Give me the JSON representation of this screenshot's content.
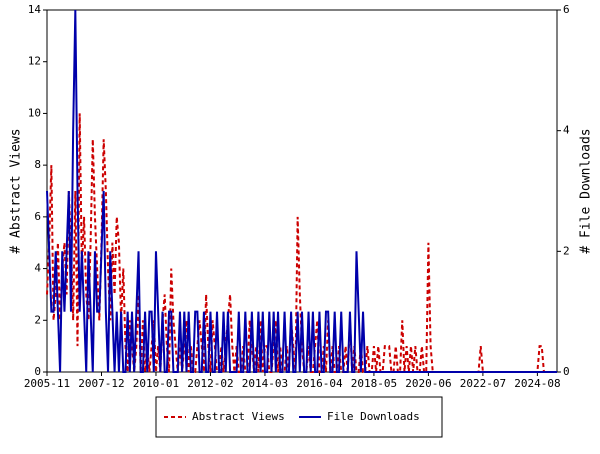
{
  "chart_data": {
    "type": "line",
    "y_label": "# Abstract Views",
    "y2_label": "# File Downloads",
    "x": [
      "2005-11",
      "2005-12",
      "2006-01",
      "2006-02",
      "2006-03",
      "2006-04",
      "2006-05",
      "2006-06",
      "2006-07",
      "2006-08",
      "2006-09",
      "2006-10",
      "2006-11",
      "2006-12",
      "2007-01",
      "2007-02",
      "2007-03",
      "2007-04",
      "2007-05",
      "2007-06",
      "2007-07",
      "2007-08",
      "2007-09",
      "2007-10",
      "2007-11",
      "2007-12",
      "2008-01",
      "2008-02",
      "2008-03",
      "2008-04",
      "2008-05",
      "2008-06",
      "2008-07",
      "2008-08",
      "2008-09",
      "2008-10",
      "2008-11",
      "2008-12",
      "2009-01",
      "2009-02",
      "2009-03",
      "2009-04",
      "2009-05",
      "2009-06",
      "2009-07",
      "2009-08",
      "2009-09",
      "2009-10",
      "2009-11",
      "2009-12",
      "2010-01",
      "2010-02",
      "2010-03",
      "2010-04",
      "2010-05",
      "2010-06",
      "2010-07",
      "2010-08",
      "2010-09",
      "2010-10",
      "2010-11",
      "2010-12",
      "2011-01",
      "2011-02",
      "2011-03",
      "2011-04",
      "2011-05",
      "2011-06",
      "2011-07",
      "2011-08",
      "2011-09",
      "2011-10",
      "2011-11",
      "2011-12",
      "2012-01",
      "2012-02",
      "2012-03",
      "2012-04",
      "2012-05",
      "2012-06",
      "2012-07",
      "2012-08",
      "2012-09",
      "2012-10",
      "2012-11",
      "2012-12",
      "2013-01",
      "2013-02",
      "2013-03",
      "2013-04",
      "2013-05",
      "2013-06",
      "2013-07",
      "2013-08",
      "2013-09",
      "2013-10",
      "2013-11",
      "2013-12",
      "2014-01",
      "2014-02",
      "2014-03",
      "2014-04",
      "2014-05",
      "2014-06",
      "2014-07",
      "2014-08",
      "2014-09",
      "2014-10",
      "2014-11",
      "2014-12",
      "2015-01",
      "2015-02",
      "2015-03",
      "2015-04",
      "2015-05",
      "2015-06",
      "2015-07",
      "2015-08",
      "2015-09",
      "2015-10",
      "2015-11",
      "2015-12",
      "2016-01",
      "2016-02",
      "2016-03",
      "2016-04",
      "2016-05",
      "2016-06",
      "2016-07",
      "2016-08",
      "2016-09",
      "2016-10",
      "2016-11",
      "2016-12",
      "2017-01",
      "2017-02",
      "2017-03",
      "2017-04",
      "2017-05",
      "2017-06",
      "2017-07",
      "2017-08",
      "2017-09",
      "2017-10",
      "2017-11",
      "2017-12",
      "2018-01",
      "2018-02",
      "2018-03",
      "2018-04",
      "2018-05",
      "2018-06",
      "2018-07",
      "2018-08",
      "2018-09",
      "2018-10",
      "2018-11",
      "2018-12",
      "2019-01",
      "2019-02",
      "2019-03",
      "2019-04",
      "2019-05",
      "2019-06",
      "2019-07",
      "2019-08",
      "2019-09",
      "2019-10",
      "2019-11",
      "2019-12",
      "2020-01",
      "2020-02",
      "2020-03",
      "2020-04",
      "2020-05",
      "2020-06",
      "2020-07",
      "2020-08",
      "2020-09",
      "2020-10",
      "2020-11",
      "2020-12",
      "2021-01",
      "2021-02",
      "2021-03",
      "2021-04",
      "2021-05",
      "2021-06",
      "2021-07",
      "2021-08",
      "2021-09",
      "2021-10",
      "2021-11",
      "2021-12",
      "2022-01",
      "2022-02",
      "2022-03",
      "2022-04",
      "2022-05",
      "2022-06",
      "2022-07",
      "2022-08",
      "2022-09",
      "2022-10",
      "2022-11",
      "2022-12",
      "2023-01",
      "2023-02",
      "2023-03",
      "2023-04",
      "2023-05",
      "2023-06",
      "2023-07",
      "2023-08",
      "2023-09",
      "2023-10",
      "2023-11",
      "2023-12",
      "2024-01",
      "2024-02",
      "2024-03",
      "2024-04",
      "2024-05",
      "2024-06",
      "2024-07",
      "2024-08",
      "2024-09",
      "2024-10",
      "2024-11",
      "2024-12",
      "2025-01",
      "2025-02",
      "2025-03",
      "2025-04",
      "2025-05"
    ],
    "series": [
      {
        "name": "Abstract Views",
        "color": "#cc0000",
        "dash": true,
        "values": [
          3,
          5,
          8,
          2,
          3,
          5,
          2,
          4,
          5,
          3,
          7,
          5,
          2,
          7,
          1,
          10,
          4,
          6,
          3,
          2,
          5,
          9,
          6,
          4,
          2,
          5,
          9,
          7,
          4,
          2,
          5,
          3,
          6,
          5,
          2,
          4,
          1,
          0,
          2,
          1,
          0,
          1,
          3,
          0,
          2,
          0,
          1,
          0,
          1,
          2,
          0,
          1,
          0,
          2,
          3,
          1,
          0,
          4,
          2,
          1,
          0,
          1,
          0,
          1,
          2,
          0,
          1,
          0,
          0,
          1,
          2,
          1,
          0,
          3,
          1,
          0,
          2,
          1,
          0,
          0,
          1,
          0,
          1,
          2,
          3,
          1,
          0,
          1,
          0,
          0,
          1,
          0,
          0,
          2,
          1,
          0,
          1,
          0,
          2,
          0,
          1,
          1,
          0,
          0,
          1,
          2,
          0,
          1,
          0,
          0,
          1,
          0,
          2,
          1,
          0,
          6,
          3,
          1,
          0,
          0,
          1,
          0,
          0,
          1,
          2,
          0,
          0,
          1,
          0,
          2,
          0,
          1,
          0,
          0,
          1,
          0,
          0,
          1,
          0,
          2,
          0,
          1,
          0,
          0,
          1,
          0,
          0,
          1,
          0,
          0,
          1,
          0,
          1,
          0,
          0,
          1,
          1,
          1,
          0,
          0,
          1,
          0,
          0,
          2,
          0,
          1,
          0,
          1,
          0,
          1,
          0,
          0,
          1,
          0,
          0,
          5,
          1,
          0,
          0,
          0,
          0,
          0,
          0,
          0,
          0,
          0,
          0,
          0,
          0,
          0,
          0,
          0,
          0,
          0,
          0,
          0,
          0,
          0,
          0,
          1,
          0,
          0,
          0,
          0,
          0,
          0,
          0,
          0,
          0,
          0,
          0,
          0,
          0,
          0,
          0,
          0,
          0,
          0,
          0,
          0,
          0,
          0,
          0,
          0,
          0,
          0,
          1,
          1,
          0,
          0,
          0,
          0,
          0,
          0,
          0
        ]
      },
      {
        "name": "File Downloads",
        "color": "#0000aa",
        "axis": "y2",
        "values": [
          3,
          2,
          1,
          1,
          2,
          1,
          0,
          2,
          1,
          2,
          3,
          1,
          4,
          6,
          3,
          1,
          2,
          1,
          0,
          2,
          1,
          0,
          2,
          1,
          1,
          2,
          3,
          1,
          0,
          2,
          1,
          0,
          1,
          0,
          1,
          0,
          0,
          1,
          0,
          1,
          0,
          1,
          2,
          0,
          0,
          1,
          0,
          1,
          1,
          0,
          2,
          1,
          0,
          1,
          0,
          0,
          1,
          1,
          0,
          0,
          0,
          1,
          0,
          1,
          0,
          1,
          0,
          0,
          1,
          1,
          0,
          0,
          1,
          0,
          0,
          1,
          0,
          0,
          1,
          0,
          0,
          1,
          0,
          1,
          0,
          0,
          0,
          0,
          1,
          0,
          0,
          1,
          0,
          0,
          1,
          0,
          0,
          1,
          0,
          1,
          0,
          0,
          1,
          0,
          1,
          0,
          1,
          0,
          0,
          1,
          0,
          0,
          1,
          0,
          0,
          1,
          0,
          1,
          0,
          0,
          1,
          0,
          1,
          0,
          0,
          1,
          0,
          0,
          1,
          1,
          0,
          0,
          1,
          0,
          0,
          1,
          0,
          0,
          0,
          1,
          0,
          0,
          2,
          1,
          0,
          1,
          0,
          0,
          0,
          0,
          0,
          0,
          0,
          0,
          0,
          0,
          0,
          0,
          0,
          0,
          0,
          0,
          0,
          0,
          0,
          0,
          0,
          0,
          0,
          0,
          0,
          0,
          0,
          0,
          0,
          0,
          0,
          0,
          0,
          0,
          0,
          0,
          0,
          0,
          0,
          0,
          0,
          0,
          0,
          0,
          0,
          0,
          0,
          0,
          0,
          0,
          0,
          0,
          0,
          0,
          0,
          0,
          0,
          0,
          0,
          0,
          0,
          0,
          0,
          0,
          0,
          0,
          0,
          0,
          0,
          0,
          0,
          0,
          0,
          0,
          0,
          0,
          0,
          0,
          0,
          0,
          0,
          0,
          0,
          0,
          0,
          0,
          0,
          0,
          0
        ]
      }
    ],
    "xlim": [
      "2005-11",
      "2025-05"
    ],
    "xticks": [
      "2005-11",
      "2007-12",
      "2010-01",
      "2012-02",
      "2014-03",
      "2016-04",
      "2018-05",
      "2020-06",
      "2022-07",
      "2024-08"
    ],
    "ylim": [
      0,
      14
    ],
    "yticks": [
      0,
      2,
      4,
      6,
      8,
      10,
      12,
      14
    ],
    "y2lim": [
      0,
      6
    ],
    "y2ticks": [
      0,
      2,
      4,
      6
    ]
  }
}
